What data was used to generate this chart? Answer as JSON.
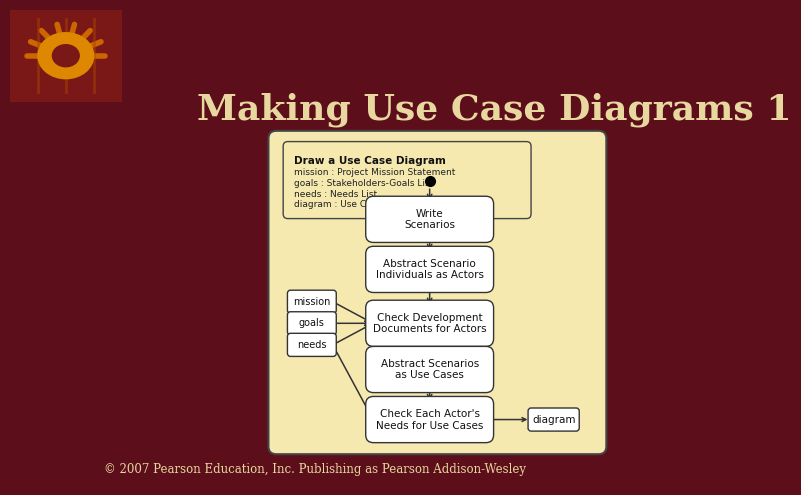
{
  "bg_color": "#5C0E1A",
  "title": "Making Use Case Diagrams 1",
  "title_color": "#E8D8A0",
  "title_fontsize": 26,
  "title_fontweight": "bold",
  "footer": "© 2007 Pearson Education, Inc. Publishing as Pearson Addison-Wesley",
  "footer_color": "#E8D8A0",
  "footer_fontsize": 8.5,
  "diagram_bg": "#F5E9B0",
  "diagram_border": "#444444",
  "activity_header": "Draw a Use Case Diagram",
  "activity_attrs_line1": "mission : Project Mission Statement",
  "activity_attrs_line2": "goals : Stakeholders-Goals List",
  "activity_attrs_line3": "needs : Needs List",
  "activity_attrs_line4": "diagram : Use Case Diagram",
  "node_labels": [
    "Write\nScenarios",
    "Abstract Scenario\nIndividuals as Actors",
    "Check Development\nDocuments for Actors",
    "Abstract Scenarios\nas Use Cases",
    "Check Each Actor's\nNeeds for Use Cases"
  ],
  "side_labels": [
    "mission",
    "goals",
    "needs"
  ],
  "output_label": "diagram",
  "gear_bg": "#7A2020",
  "gear_colors": [
    "#CC6600",
    "#AA4400",
    "#DD8800"
  ]
}
